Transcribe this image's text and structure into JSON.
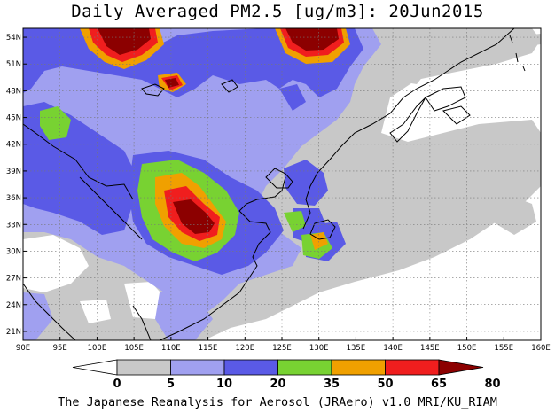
{
  "title": "Daily Averaged PM2.5 [ug/m3]: 20Jun2015",
  "footer": "The Japanese Reanalysis for Aerosol (JRAero) v1.0 MRI/KU_RIAM",
  "map": {
    "lon_range": [
      90,
      160
    ],
    "lat_range": [
      20,
      55
    ],
    "lon_ticks": [
      "90E",
      "95E",
      "100E",
      "105E",
      "110E",
      "115E",
      "120E",
      "125E",
      "130E",
      "135E",
      "140E",
      "145E",
      "150E",
      "155E",
      "160E"
    ],
    "lat_ticks": [
      "21N",
      "24N",
      "27N",
      "30N",
      "33N",
      "36N",
      "39N",
      "42N",
      "45N",
      "48N",
      "51N",
      "54N"
    ],
    "grid": true
  },
  "colorbar": {
    "levels": [
      "0",
      "5",
      "10",
      "20",
      "35",
      "50",
      "65",
      "80"
    ],
    "colors": [
      "#ffffff",
      "#c8c8c8",
      "#a0a0f0",
      "#5a5ae6",
      "#78d232",
      "#f0a000",
      "#f01e1e",
      "#8c0000"
    ]
  }
}
